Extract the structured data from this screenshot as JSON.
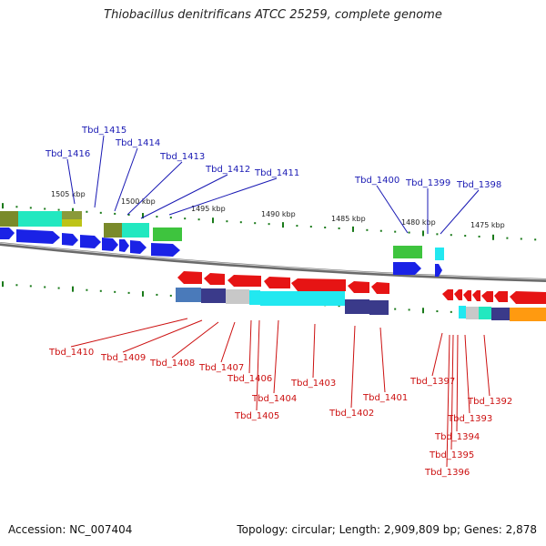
{
  "title": "Thiobacillus denitrificans ATCC 25259, complete genome",
  "footer": {
    "accession": "Accession: NC_007404",
    "topology": "Topology: circular; Length: 2,909,809 bp; Genes: 2,878"
  },
  "colors": {
    "forward_label": "#1a1ab4",
    "reverse_label": "#cc1010",
    "forward_gene": "#1a22e6",
    "reverse_gene": "#e61414",
    "tick": "#1a7a1a"
  },
  "scale_labels": [
    "1505 kbp",
    "1500 kbp",
    "1495 kbp",
    "1490 kbp",
    "1485 kbp",
    "1480 kbp",
    "1475 kbp"
  ],
  "forward_genes": [
    "Tbd_1416",
    "Tbd_1415",
    "Tbd_1414",
    "Tbd_1413",
    "Tbd_1412",
    "Tbd_1411",
    "Tbd_1400",
    "Tbd_1399",
    "Tbd_1398"
  ],
  "reverse_genes": [
    "Tbd_1410",
    "Tbd_1409",
    "Tbd_1408",
    "Tbd_1407",
    "Tbd_1406",
    "Tbd_1405",
    "Tbd_1404",
    "Tbd_1403",
    "Tbd_1402",
    "Tbd_1401",
    "Tbd_1397",
    "Tbd_1396",
    "Tbd_1395",
    "Tbd_1394",
    "Tbd_1393",
    "Tbd_1392"
  ]
}
